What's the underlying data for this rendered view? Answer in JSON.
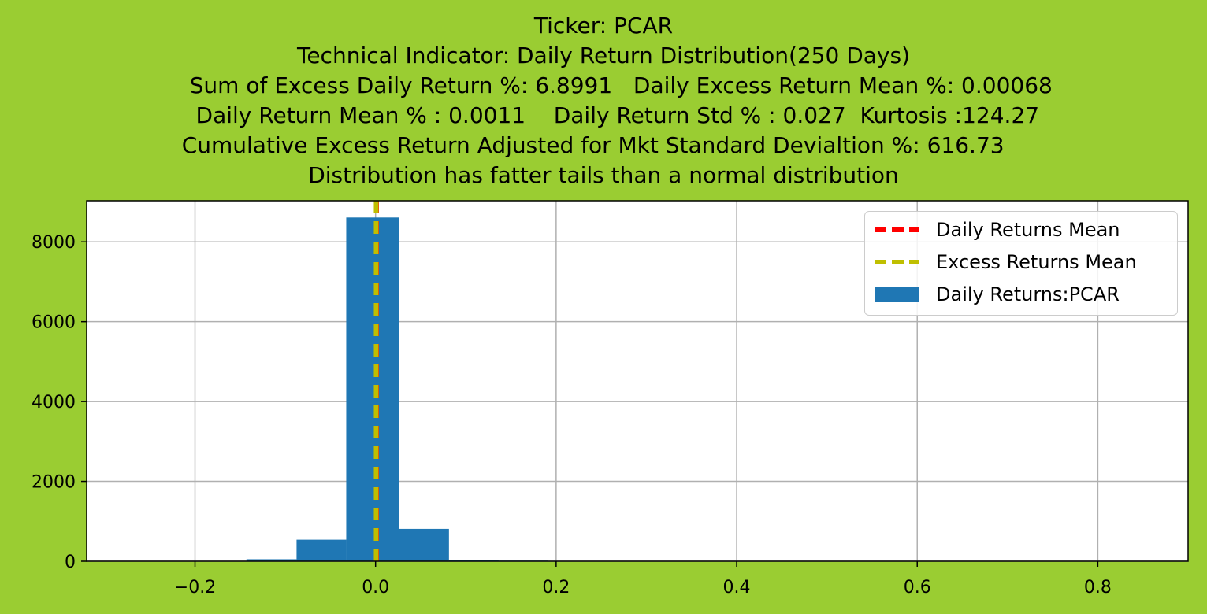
{
  "titles": [
    "Ticker: PCAR",
    "Technical Indicator: Daily Return Distribution(250 Days)",
    "     Sum of Excess Daily Return %: 6.8991   Daily Excess Return Mean %: 0.00068",
    "    Daily Return Mean % : 0.0011    Daily Return Std % : 0.027  Kurtosis :124.27",
    "Cumulative Excess Return Adjusted for Mkt Standard Devialtion %: 616.73   ",
    "Distribution has fatter tails than a normal distribution"
  ],
  "colors": {
    "background": "#9acd32",
    "bars": "#1f77b4",
    "daily_mean_line": "#ff0000",
    "excess_mean_line": "#bfbf00"
  },
  "chart_data": {
    "type": "bar",
    "bins": [
      {
        "x0": -0.267,
        "x1": -0.212,
        "count": 0
      },
      {
        "x0": -0.212,
        "x1": -0.157,
        "count": 0
      },
      {
        "x0": -0.143,
        "x1": -0.0875,
        "count": 50
      },
      {
        "x0": -0.0875,
        "x1": -0.0325,
        "count": 540
      },
      {
        "x0": -0.0325,
        "x1": 0.0263,
        "count": 8610
      },
      {
        "x0": 0.0263,
        "x1": 0.0813,
        "count": 810
      },
      {
        "x0": 0.0813,
        "x1": 0.1363,
        "count": 30
      },
      {
        "x0": 0.1363,
        "x1": 0.1913,
        "count": 15
      }
    ],
    "daily_returns_mean": 0.0011,
    "excess_returns_mean": 0.00068,
    "xlim": [
      -0.32,
      0.9
    ],
    "ylim": [
      0,
      9030
    ],
    "xticks": [
      -0.2,
      0.0,
      0.2,
      0.4,
      0.6,
      0.8
    ],
    "xtick_labels": [
      "−0.2",
      "0.0",
      "0.2",
      "0.4",
      "0.6",
      "0.8"
    ],
    "yticks": [
      0,
      2000,
      4000,
      6000,
      8000
    ],
    "ytick_labels": [
      "0",
      "2000",
      "4000",
      "6000",
      "8000"
    ],
    "grid": true,
    "legend_position": "top-right",
    "legend": [
      "Daily Returns Mean",
      "Excess Returns Mean",
      "Daily Returns:PCAR"
    ]
  }
}
